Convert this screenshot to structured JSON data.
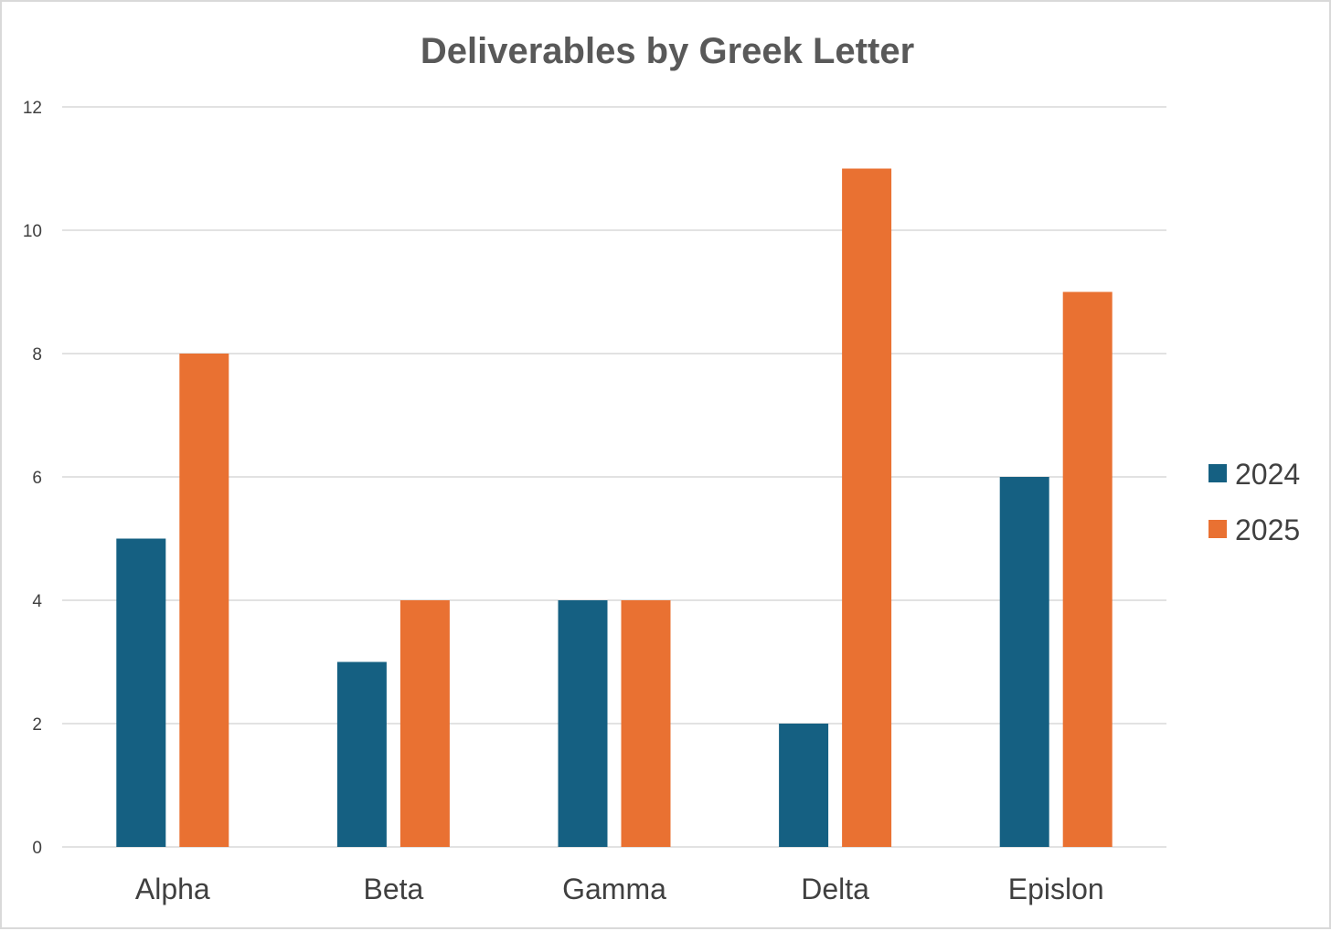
{
  "chart_data": {
    "type": "bar",
    "title": "Deliverables by Greek Letter",
    "xlabel": "",
    "ylabel": "",
    "categories": [
      "Alpha",
      "Beta",
      "Gamma",
      "Delta",
      "Epislon"
    ],
    "series": [
      {
        "name": "2024",
        "color": "#156082",
        "values": [
          5,
          3,
          4,
          2,
          6
        ]
      },
      {
        "name": "2025",
        "color": "#E97132",
        "values": [
          8,
          4,
          4,
          11,
          9
        ]
      }
    ],
    "ylim": [
      0,
      12
    ],
    "yticks": [
      0,
      2,
      4,
      6,
      8,
      10,
      12
    ],
    "grid": true,
    "legend_position": "right"
  }
}
